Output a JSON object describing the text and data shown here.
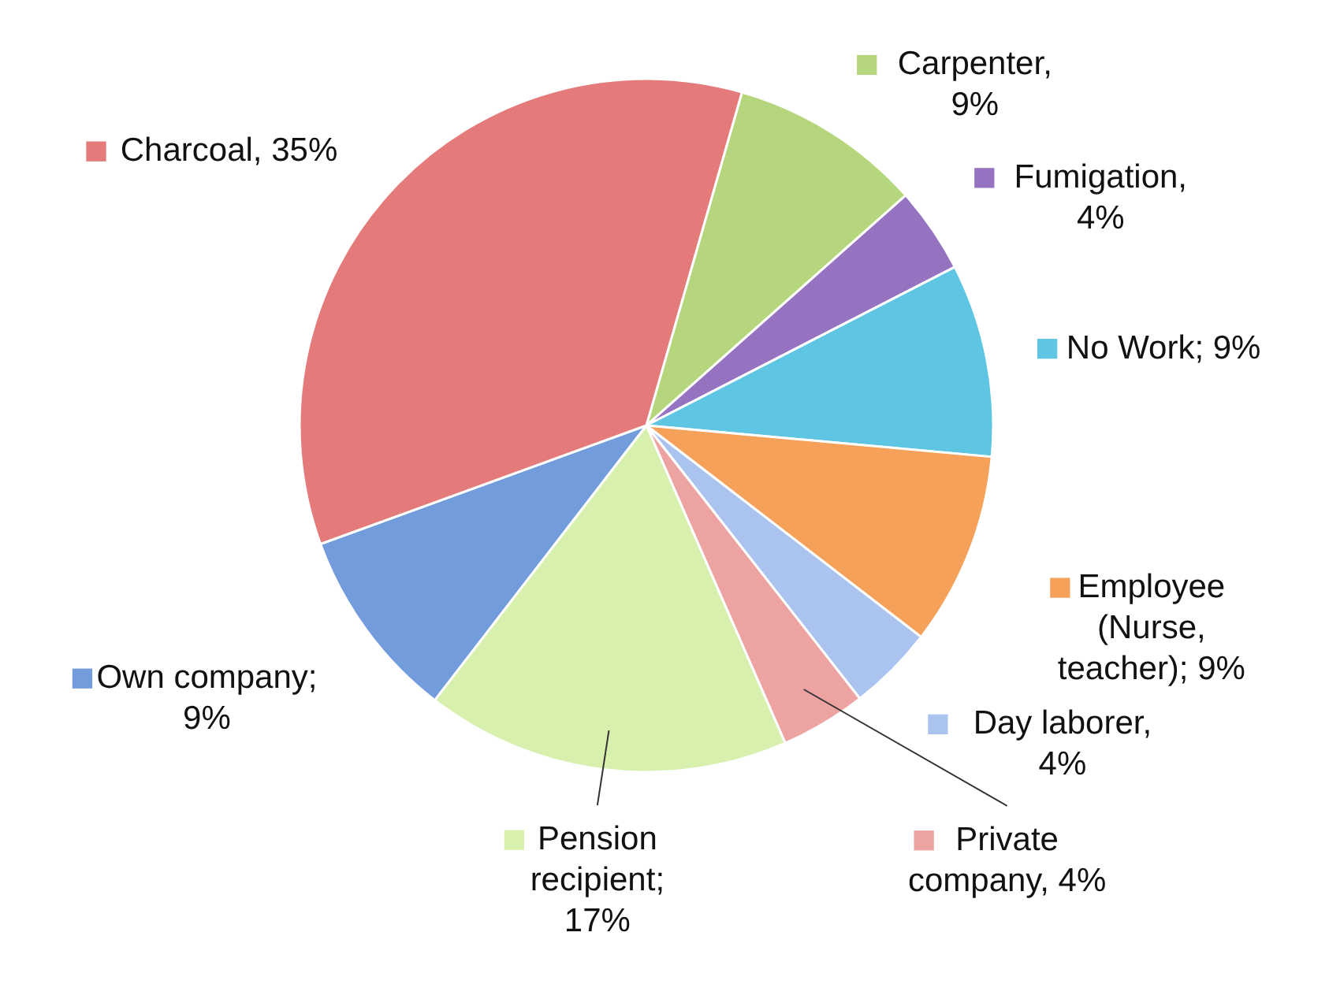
{
  "chart_data": {
    "type": "pie",
    "categories": [
      "Carpenter",
      "Fumigation",
      "No Work",
      "Employee (Nurse, teacher)",
      "Day laborer",
      "Private company",
      "Pension recipient",
      "Own company",
      "Charcoal"
    ],
    "values": [
      9,
      4,
      9,
      9,
      4,
      4,
      17,
      9,
      35
    ],
    "colors": [
      "#b5d67c",
      "#9673c0",
      "#5ec6e2",
      "#f5a15a",
      "#aac4ef",
      "#eea3a3",
      "#d8f0ae",
      "#739cdc",
      "#e47a7a"
    ],
    "legend": "right",
    "value_labels": [
      ", 9%",
      ", 4%",
      "; 9%",
      "; 9%",
      ", 4%",
      ", 4%",
      "; 17%",
      "; 9%",
      ", 35%"
    ]
  }
}
